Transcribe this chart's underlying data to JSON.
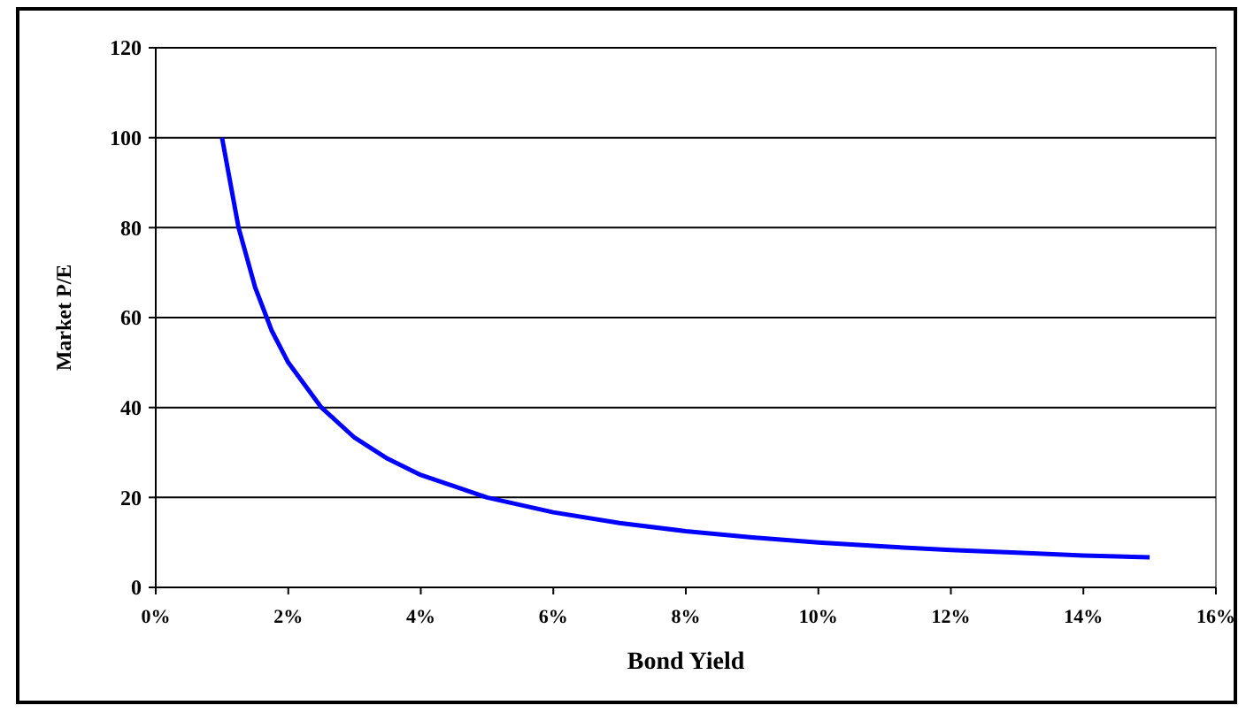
{
  "chart_data": {
    "type": "line",
    "xlabel": "Bond Yield",
    "ylabel": "Market P/E",
    "x": [
      1,
      1.25,
      1.5,
      1.75,
      2,
      2.5,
      3,
      3.5,
      4,
      5,
      6,
      7,
      8,
      9,
      10,
      11,
      12,
      13,
      14,
      15
    ],
    "series": [
      {
        "color": "#0000ff",
        "values": [
          100,
          80,
          66.7,
          57.1,
          50,
          40,
          33.3,
          28.6,
          25,
          20,
          16.7,
          14.3,
          12.5,
          11.1,
          10,
          9.1,
          8.3,
          7.7,
          7.1,
          6.7
        ]
      }
    ],
    "xlim": [
      0,
      16
    ],
    "xticks": [
      {
        "value": 0,
        "label": "0%"
      },
      {
        "value": 2,
        "label": "2%"
      },
      {
        "value": 4,
        "label": "4%"
      },
      {
        "value": 6,
        "label": "6%"
      },
      {
        "value": 8,
        "label": "8%"
      },
      {
        "value": 10,
        "label": "10%"
      },
      {
        "value": 12,
        "label": "12%"
      },
      {
        "value": 14,
        "label": "14%"
      },
      {
        "value": 16,
        "label": "16%"
      }
    ],
    "ylim": [
      0,
      120
    ],
    "yticks": [
      0,
      20,
      40,
      60,
      80,
      100,
      120
    ],
    "grid": "y",
    "marker": "none",
    "line_style": "solid"
  }
}
